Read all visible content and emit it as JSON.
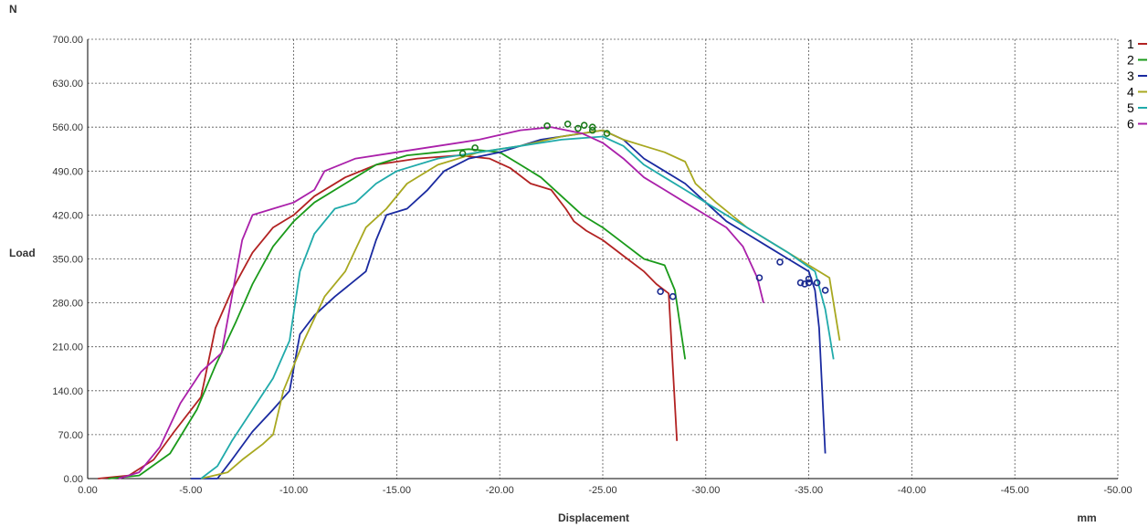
{
  "chart_data": {
    "type": "line",
    "title": "",
    "xlabel": "Displacement",
    "ylabel": "Load",
    "x_unit": "mm",
    "y_unit": "N",
    "xlim": [
      0,
      -50
    ],
    "ylim": [
      0,
      700
    ],
    "x_ticks": [
      "0.00",
      "-5.00",
      "-10.00",
      "-15.00",
      "-20.00",
      "-25.00",
      "-30.00",
      "-35.00",
      "-40.00",
      "-45.00",
      "-50.00"
    ],
    "y_ticks": [
      "0.00",
      "70.00",
      "140.00",
      "210.00",
      "280.00",
      "350.00",
      "420.00",
      "490.00",
      "560.00",
      "630.00",
      "700.00"
    ],
    "grid": true,
    "legend_position": "right",
    "series": [
      {
        "name": "1",
        "color": "#b22222",
        "points": [
          [
            0.5,
            0
          ],
          [
            2.0,
            5
          ],
          [
            3.2,
            30
          ],
          [
            4.2,
            75
          ],
          [
            5.5,
            130
          ],
          [
            6.2,
            240
          ],
          [
            7.0,
            300
          ],
          [
            8.0,
            360
          ],
          [
            9.0,
            400
          ],
          [
            10.0,
            420
          ],
          [
            11.0,
            450
          ],
          [
            12.5,
            480
          ],
          [
            14.0,
            500
          ],
          [
            16.0,
            510
          ],
          [
            18.0,
            515
          ],
          [
            19.5,
            510
          ],
          [
            20.5,
            495
          ],
          [
            21.5,
            470
          ],
          [
            22.5,
            460
          ],
          [
            23.2,
            430
          ],
          [
            23.6,
            410
          ],
          [
            24.2,
            395
          ],
          [
            25.0,
            380
          ],
          [
            26.0,
            355
          ],
          [
            27.0,
            330
          ],
          [
            27.6,
            310
          ],
          [
            28.2,
            295
          ],
          [
            28.6,
            60
          ]
        ]
      },
      {
        "name": "2",
        "color": "#1a9a1a",
        "points": [
          [
            1.0,
            0
          ],
          [
            2.5,
            5
          ],
          [
            4.0,
            40
          ],
          [
            5.3,
            110
          ],
          [
            6.2,
            180
          ],
          [
            7.2,
            250
          ],
          [
            8.0,
            310
          ],
          [
            9.0,
            370
          ],
          [
            10.0,
            410
          ],
          [
            11.0,
            440
          ],
          [
            12.5,
            470
          ],
          [
            14.0,
            500
          ],
          [
            15.5,
            515
          ],
          [
            17.0,
            520
          ],
          [
            18.5,
            525
          ],
          [
            20.0,
            520
          ],
          [
            21.0,
            500
          ],
          [
            22.0,
            480
          ],
          [
            23.0,
            450
          ],
          [
            24.0,
            420
          ],
          [
            25.0,
            400
          ],
          [
            26.0,
            375
          ],
          [
            27.0,
            350
          ],
          [
            28.0,
            340
          ],
          [
            28.5,
            300
          ],
          [
            29.0,
            190
          ]
        ]
      },
      {
        "name": "3",
        "color": "#1a2aa0",
        "points": [
          [
            5.0,
            0
          ],
          [
            6.3,
            0
          ],
          [
            7.0,
            30
          ],
          [
            8.0,
            75
          ],
          [
            9.0,
            110
          ],
          [
            9.8,
            140
          ],
          [
            10.3,
            230
          ],
          [
            11.0,
            260
          ],
          [
            12.0,
            290
          ],
          [
            13.5,
            330
          ],
          [
            14.0,
            380
          ],
          [
            14.5,
            420
          ],
          [
            15.5,
            430
          ],
          [
            16.5,
            460
          ],
          [
            17.3,
            490
          ],
          [
            18.5,
            510
          ],
          [
            20.0,
            520
          ],
          [
            22.0,
            540
          ],
          [
            24.0,
            550
          ],
          [
            25.0,
            555
          ],
          [
            26.0,
            540
          ],
          [
            27.0,
            510
          ],
          [
            28.0,
            490
          ],
          [
            29.0,
            470
          ],
          [
            30.0,
            440
          ],
          [
            31.0,
            410
          ],
          [
            32.0,
            390
          ],
          [
            33.0,
            370
          ],
          [
            34.0,
            350
          ],
          [
            35.0,
            330
          ],
          [
            35.3,
            300
          ],
          [
            35.5,
            240
          ],
          [
            35.8,
            40
          ]
        ]
      },
      {
        "name": "4",
        "color": "#a8a820",
        "points": [
          [
            5.5,
            0
          ],
          [
            6.8,
            10
          ],
          [
            7.5,
            30
          ],
          [
            8.5,
            55
          ],
          [
            9.0,
            70
          ],
          [
            9.5,
            140
          ],
          [
            10.5,
            220
          ],
          [
            11.5,
            290
          ],
          [
            12.5,
            330
          ],
          [
            13.5,
            400
          ],
          [
            14.5,
            430
          ],
          [
            15.5,
            470
          ],
          [
            17.0,
            500
          ],
          [
            19.0,
            520
          ],
          [
            21.0,
            530
          ],
          [
            23.0,
            545
          ],
          [
            25.0,
            555
          ],
          [
            26.0,
            540
          ],
          [
            27.0,
            530
          ],
          [
            28.0,
            520
          ],
          [
            29.0,
            505
          ],
          [
            29.5,
            470
          ],
          [
            30.5,
            440
          ],
          [
            32.0,
            400
          ],
          [
            33.5,
            370
          ],
          [
            35.0,
            340
          ],
          [
            36.0,
            320
          ],
          [
            36.5,
            220
          ]
        ]
      },
      {
        "name": "5",
        "color": "#20aaaa",
        "points": [
          [
            5.5,
            0
          ],
          [
            6.3,
            20
          ],
          [
            7.0,
            60
          ],
          [
            8.0,
            110
          ],
          [
            9.0,
            160
          ],
          [
            9.8,
            220
          ],
          [
            10.3,
            330
          ],
          [
            11.0,
            390
          ],
          [
            12.0,
            430
          ],
          [
            13.0,
            440
          ],
          [
            14.0,
            470
          ],
          [
            15.0,
            490
          ],
          [
            17.0,
            510
          ],
          [
            19.0,
            520
          ],
          [
            21.0,
            530
          ],
          [
            23.0,
            540
          ],
          [
            25.0,
            545
          ],
          [
            26.0,
            530
          ],
          [
            27.0,
            500
          ],
          [
            28.0,
            480
          ],
          [
            29.0,
            460
          ],
          [
            30.0,
            440
          ],
          [
            32.0,
            400
          ],
          [
            34.0,
            360
          ],
          [
            35.3,
            330
          ],
          [
            35.8,
            270
          ],
          [
            36.2,
            190
          ]
        ]
      },
      {
        "name": "6",
        "color": "#aa20aa",
        "points": [
          [
            1.5,
            0
          ],
          [
            2.5,
            10
          ],
          [
            3.5,
            50
          ],
          [
            4.5,
            120
          ],
          [
            5.5,
            170
          ],
          [
            6.5,
            200
          ],
          [
            7.5,
            380
          ],
          [
            8.0,
            420
          ],
          [
            9.0,
            430
          ],
          [
            10.0,
            440
          ],
          [
            11.0,
            460
          ],
          [
            11.5,
            490
          ],
          [
            13.0,
            510
          ],
          [
            15.0,
            520
          ],
          [
            17.0,
            530
          ],
          [
            19.0,
            540
          ],
          [
            21.0,
            555
          ],
          [
            22.5,
            560
          ],
          [
            24.0,
            550
          ],
          [
            25.0,
            535
          ],
          [
            26.0,
            510
          ],
          [
            27.0,
            480
          ],
          [
            28.0,
            460
          ],
          [
            29.0,
            440
          ],
          [
            30.0,
            420
          ],
          [
            31.0,
            400
          ],
          [
            31.8,
            370
          ],
          [
            32.5,
            320
          ],
          [
            32.8,
            280
          ]
        ]
      }
    ],
    "markers": {
      "green_circles": [
        [
          18.2,
          518
        ],
        [
          18.8,
          527
        ],
        [
          22.3,
          562
        ],
        [
          23.3,
          565
        ],
        [
          23.8,
          558
        ],
        [
          24.1,
          563
        ],
        [
          24.5,
          560
        ],
        [
          24.5,
          555
        ],
        [
          25.2,
          550
        ]
      ],
      "blue_circles": [
        [
          27.8,
          298
        ],
        [
          28.4,
          290
        ],
        [
          32.6,
          320
        ],
        [
          33.6,
          345
        ],
        [
          34.6,
          312
        ],
        [
          34.8,
          310
        ],
        [
          35.0,
          318
        ],
        [
          35.0,
          312
        ],
        [
          35.4,
          312
        ],
        [
          35.8,
          300
        ]
      ]
    }
  }
}
